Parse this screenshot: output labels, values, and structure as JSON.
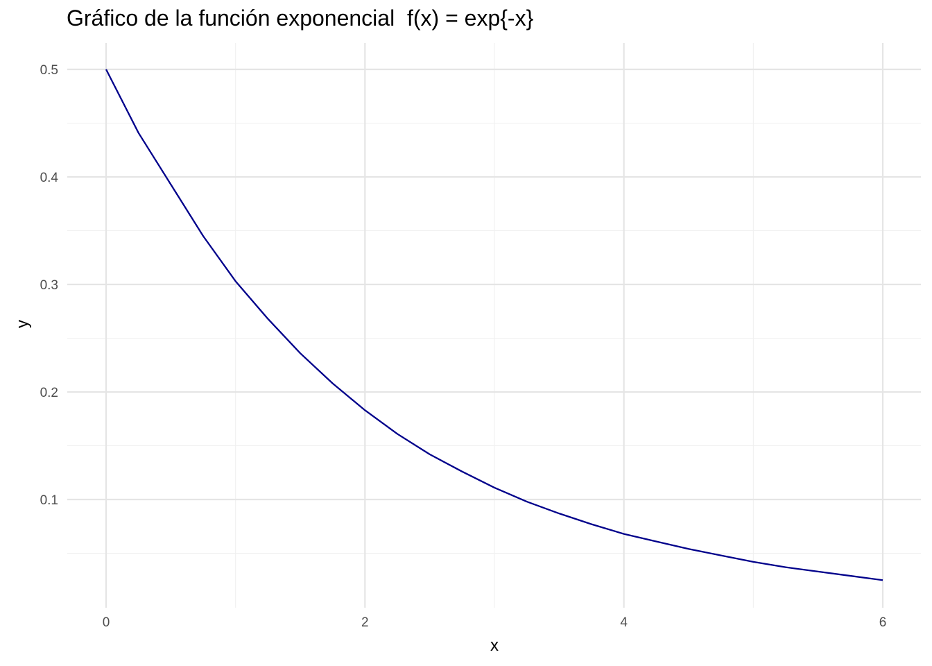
{
  "chart_data": {
    "type": "line",
    "title": "Gráfico de la función exponencial  f(x) = exp{-x}",
    "xlabel": "x",
    "ylabel": "y",
    "xlim": [
      -0.3,
      6.3
    ],
    "ylim": [
      0.0,
      0.524
    ],
    "x_ticks": [
      0,
      2,
      4,
      6
    ],
    "x_tick_labels": [
      "0",
      "2",
      "4",
      "6"
    ],
    "x_minor_ticks": [
      1,
      3,
      5
    ],
    "y_ticks": [
      0.1,
      0.2,
      0.3,
      0.4,
      0.5
    ],
    "y_tick_labels": [
      "0.1",
      "0.2",
      "0.3",
      "0.4",
      "0.5"
    ],
    "y_minor_ticks": [
      0.05,
      0.15,
      0.25,
      0.35,
      0.45
    ],
    "grid": true,
    "series": [
      {
        "color": "#00008b",
        "x": [
          0,
          0.25,
          0.5,
          0.75,
          1,
          1.25,
          1.5,
          1.75,
          2,
          2.25,
          2.5,
          2.75,
          3,
          3.25,
          3.5,
          3.75,
          4,
          4.25,
          4.5,
          4.75,
          5,
          5.25,
          5.5,
          5.75,
          6
        ],
        "y": [
          0.5,
          0.441,
          0.393,
          0.345,
          0.303,
          0.268,
          0.236,
          0.208,
          0.183,
          0.161,
          0.142,
          0.126,
          0.111,
          0.098,
          0.087,
          0.077,
          0.068,
          0.061,
          0.054,
          0.048,
          0.042,
          0.037,
          0.033,
          0.029,
          0.025
        ]
      }
    ]
  }
}
